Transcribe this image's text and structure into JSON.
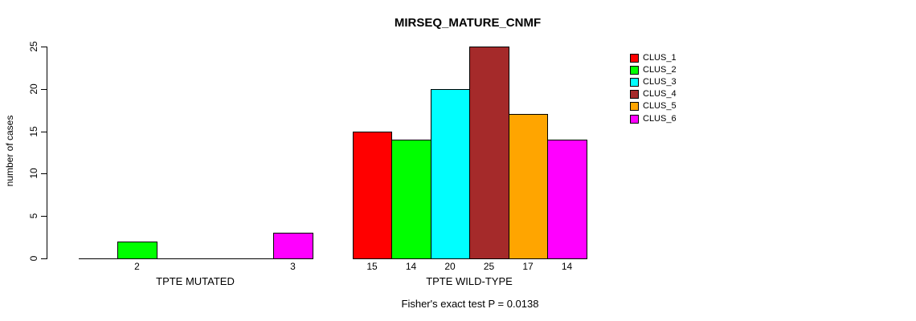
{
  "chart_data": {
    "type": "bar",
    "title": "MIRSEQ_MATURE_CNMF",
    "ylabel": "number of cases",
    "ylim": [
      0,
      25
    ],
    "yticks": [
      0,
      5,
      10,
      15,
      20,
      25
    ],
    "grid": false,
    "legend_position": "right",
    "series": [
      {
        "name": "CLUS_1",
        "color": "#FF0000"
      },
      {
        "name": "CLUS_2",
        "color": "#00FF00"
      },
      {
        "name": "CLUS_3",
        "color": "#00FFFF"
      },
      {
        "name": "CLUS_4",
        "color": "#A52A2A"
      },
      {
        "name": "CLUS_5",
        "color": "#FFA500"
      },
      {
        "name": "CLUS_6",
        "color": "#FF00FF"
      }
    ],
    "groups": [
      {
        "label": "TPTE MUTATED",
        "values": [
          0,
          2,
          0,
          0,
          0,
          3
        ]
      },
      {
        "label": "TPTE WILD-TYPE",
        "values": [
          15,
          14,
          20,
          25,
          17,
          14
        ]
      }
    ],
    "footnote": "Fisher's exact test P = 0.0138"
  }
}
